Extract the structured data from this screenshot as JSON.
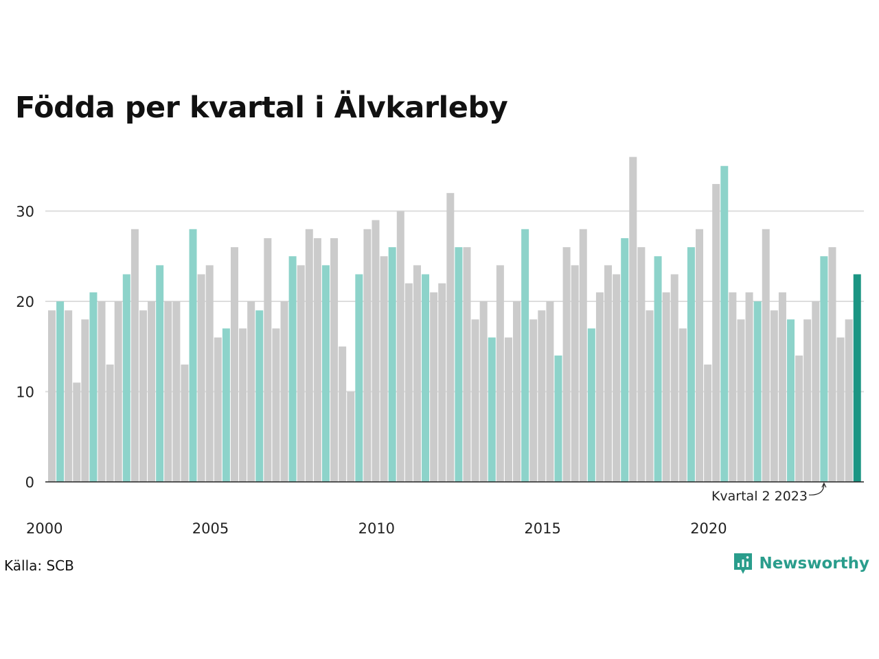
{
  "title": "Födda per kvartal i Älvkarleby",
  "source": "Källa: SCB",
  "brand": {
    "name": "Newsworthy",
    "icon": "newsworthy-logo-icon"
  },
  "colors": {
    "highlight": "#8dd3ca",
    "other": "#cbcbcb",
    "latest": "#1b9583",
    "grid": "#dddddd",
    "axis": "#222222"
  },
  "chart_data": {
    "type": "bar",
    "start_year": 2000,
    "quarters_per_year": 4,
    "highlight_quarter": 2,
    "values": [
      19,
      20,
      19,
      11,
      18,
      21,
      20,
      13,
      20,
      23,
      28,
      19,
      20,
      24,
      20,
      20,
      13,
      28,
      23,
      24,
      16,
      17,
      26,
      17,
      20,
      19,
      27,
      17,
      20,
      25,
      24,
      28,
      27,
      24,
      27,
      15,
      10,
      23,
      28,
      29,
      25,
      26,
      30,
      22,
      24,
      23,
      21,
      22,
      32,
      26,
      26,
      18,
      20,
      16,
      24,
      16,
      20,
      28,
      18,
      19,
      20,
      14,
      26,
      24,
      28,
      17,
      21,
      24,
      23,
      27,
      36,
      26,
      19,
      25,
      21,
      23,
      17,
      26,
      28,
      13,
      33,
      35,
      21,
      18,
      21,
      20,
      28,
      19,
      21,
      18,
      14,
      18,
      20,
      25,
      26,
      16,
      18,
      23
    ],
    "ylim": [
      0,
      36
    ],
    "yticks": [
      0,
      10,
      20,
      30
    ],
    "xticks": [
      "2000",
      "2005",
      "2010",
      "2015",
      "2020"
    ],
    "grid": true,
    "annotation": "Kvartal 2 2023"
  }
}
